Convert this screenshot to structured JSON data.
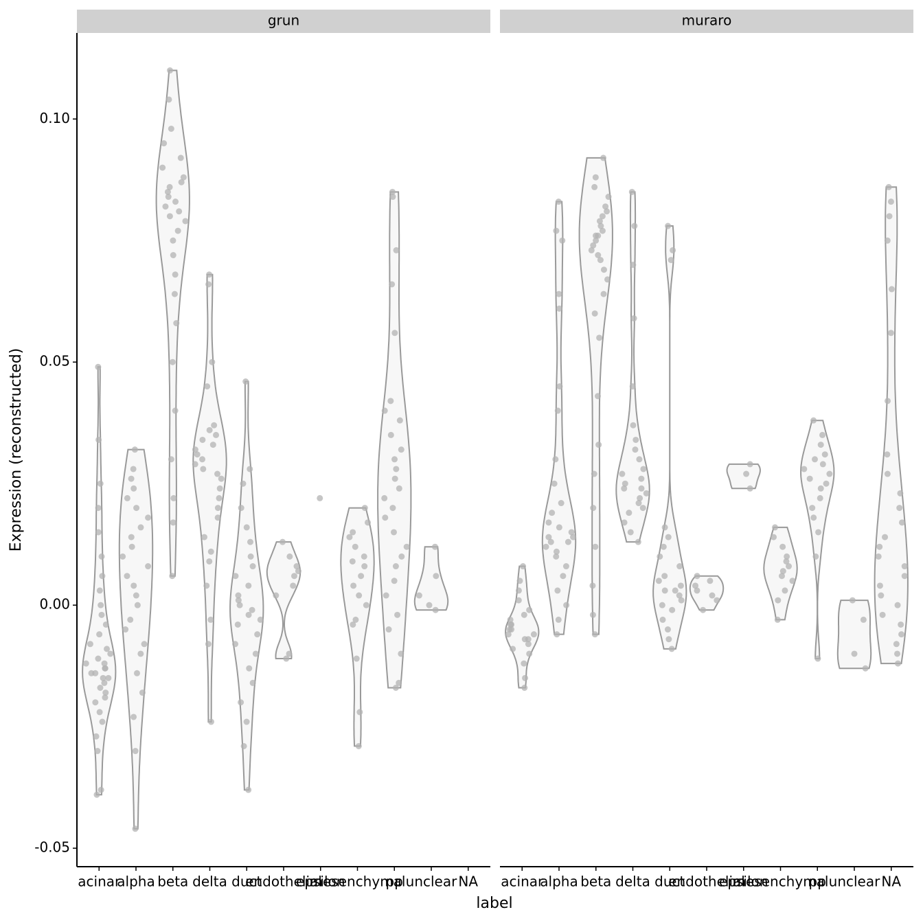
{
  "chart_data": {
    "type": "violin",
    "xlabel": "label",
    "ylabel": "Expression (reconstructed)",
    "ylim": [
      -0.0538,
      0.1177
    ],
    "yticks": [
      {
        "value": -0.05,
        "label": "-0.05"
      },
      {
        "value": 0,
        "label": "0.00"
      },
      {
        "value": 0.05,
        "label": "0.05"
      },
      {
        "value": 0.1,
        "label": "0.10"
      }
    ],
    "point_color": "#b3b3b3",
    "violin_color": "#999999",
    "violin_fill": "#f7f7f7",
    "strip_color": "#d0d0d0",
    "facets": [
      {
        "title": "grun",
        "categories": [
          "acinar",
          "alpha",
          "beta",
          "delta",
          "duct",
          "endothelial",
          "epsilon",
          "mesenchymal",
          "pp",
          "unclear",
          "NA"
        ],
        "groups": [
          [
            -0.039,
            -0.038,
            -0.03,
            -0.027,
            -0.024,
            -0.022,
            -0.02,
            -0.019,
            -0.018,
            -0.017,
            -0.016,
            -0.015,
            -0.015,
            -0.014,
            -0.014,
            -0.013,
            -0.013,
            -0.012,
            -0.012,
            -0.011,
            -0.01,
            -0.009,
            -0.008,
            -0.006,
            -0.004,
            -0.002,
            0.0,
            0.003,
            0.006,
            0.01,
            0.015,
            0.02,
            0.025,
            0.034,
            0.049
          ],
          [
            -0.046,
            -0.03,
            -0.023,
            -0.018,
            -0.014,
            -0.01,
            -0.008,
            -0.005,
            -0.003,
            0.0,
            0.002,
            0.004,
            0.006,
            0.008,
            0.01,
            0.012,
            0.014,
            0.016,
            0.018,
            0.02,
            0.022,
            0.024,
            0.026,
            0.028,
            0.032
          ],
          [
            0.006,
            0.017,
            0.022,
            0.03,
            0.04,
            0.05,
            0.058,
            0.064,
            0.068,
            0.072,
            0.075,
            0.077,
            0.079,
            0.08,
            0.081,
            0.082,
            0.083,
            0.084,
            0.085,
            0.086,
            0.087,
            0.088,
            0.09,
            0.092,
            0.095,
            0.098,
            0.104,
            0.11
          ],
          [
            -0.024,
            -0.008,
            -0.003,
            0.004,
            0.009,
            0.011,
            0.014,
            0.018,
            0.02,
            0.022,
            0.024,
            0.026,
            0.027,
            0.028,
            0.029,
            0.03,
            0.031,
            0.032,
            0.033,
            0.034,
            0.035,
            0.036,
            0.037,
            0.045,
            0.05,
            0.066,
            0.068
          ],
          [
            -0.038,
            -0.029,
            -0.024,
            -0.02,
            -0.016,
            -0.013,
            -0.01,
            -0.008,
            -0.006,
            -0.004,
            -0.003,
            -0.002,
            -0.001,
            0.0,
            0.001,
            0.002,
            0.004,
            0.006,
            0.008,
            0.01,
            0.013,
            0.016,
            0.02,
            0.025,
            0.028,
            0.046
          ],
          [
            -0.011,
            -0.01,
            0.002,
            0.004,
            0.006,
            0.007,
            0.008,
            0.01,
            0.013
          ],
          [
            0.022
          ],
          [
            -0.029,
            -0.022,
            -0.011,
            -0.004,
            -0.003,
            0.0,
            0.002,
            0.004,
            0.006,
            0.008,
            0.009,
            0.01,
            0.012,
            0.014,
            0.015,
            0.017,
            0.02
          ],
          [
            -0.017,
            -0.016,
            -0.01,
            -0.005,
            -0.002,
            0.002,
            0.005,
            0.008,
            0.01,
            0.012,
            0.015,
            0.018,
            0.02,
            0.022,
            0.024,
            0.026,
            0.028,
            0.03,
            0.032,
            0.035,
            0.038,
            0.04,
            0.042,
            0.056,
            0.066,
            0.073,
            0.084,
            0.085
          ],
          [
            -0.001,
            0.0,
            0.002,
            0.006,
            0.012
          ],
          []
        ]
      },
      {
        "title": "muraro",
        "categories": [
          "acinar",
          "alpha",
          "beta",
          "delta",
          "duct",
          "endothelial",
          "epsilon",
          "mesenchymal",
          "pp",
          "unclear",
          "NA"
        ],
        "groups": [
          [
            -0.017,
            -0.015,
            -0.012,
            -0.01,
            -0.009,
            -0.008,
            -0.007,
            -0.007,
            -0.006,
            -0.006,
            -0.005,
            -0.005,
            -0.004,
            -0.004,
            -0.003,
            -0.002,
            -0.001,
            0.001,
            0.003,
            0.005,
            0.008
          ],
          [
            -0.006,
            -0.003,
            0.0,
            0.003,
            0.006,
            0.008,
            0.01,
            0.011,
            0.012,
            0.013,
            0.013,
            0.014,
            0.014,
            0.015,
            0.016,
            0.017,
            0.019,
            0.021,
            0.025,
            0.03,
            0.04,
            0.045,
            0.061,
            0.064,
            0.075,
            0.077,
            0.083
          ],
          [
            -0.006,
            -0.002,
            0.004,
            0.012,
            0.02,
            0.027,
            0.033,
            0.043,
            0.055,
            0.06,
            0.064,
            0.067,
            0.069,
            0.071,
            0.072,
            0.073,
            0.074,
            0.075,
            0.076,
            0.076,
            0.077,
            0.078,
            0.079,
            0.08,
            0.081,
            0.082,
            0.084,
            0.086,
            0.088,
            0.092
          ],
          [
            0.013,
            0.015,
            0.017,
            0.019,
            0.02,
            0.021,
            0.022,
            0.023,
            0.024,
            0.024,
            0.025,
            0.026,
            0.027,
            0.028,
            0.03,
            0.032,
            0.034,
            0.037,
            0.045,
            0.059,
            0.07,
            0.078,
            0.085
          ],
          [
            -0.009,
            -0.007,
            -0.005,
            -0.003,
            -0.001,
            0.0,
            0.001,
            0.002,
            0.003,
            0.003,
            0.004,
            0.005,
            0.006,
            0.008,
            0.01,
            0.012,
            0.014,
            0.016,
            0.071,
            0.073,
            0.078
          ],
          [
            -0.001,
            0.001,
            0.002,
            0.003,
            0.004,
            0.005,
            0.006
          ],
          [
            0.024,
            0.027,
            0.029
          ],
          [
            -0.003,
            0.001,
            0.003,
            0.005,
            0.006,
            0.007,
            0.008,
            0.009,
            0.01,
            0.012,
            0.014,
            0.016
          ],
          [
            -0.011,
            0.01,
            0.015,
            0.018,
            0.02,
            0.022,
            0.024,
            0.025,
            0.026,
            0.027,
            0.028,
            0.029,
            0.03,
            0.031,
            0.033,
            0.035,
            0.038
          ],
          [
            -0.013,
            -0.01,
            -0.003,
            0.001
          ],
          [
            -0.012,
            -0.01,
            -0.008,
            -0.006,
            -0.004,
            -0.002,
            0.0,
            0.002,
            0.004,
            0.006,
            0.008,
            0.01,
            0.012,
            0.014,
            0.017,
            0.02,
            0.023,
            0.027,
            0.031,
            0.042,
            0.056,
            0.065,
            0.075,
            0.08,
            0.083,
            0.086
          ]
        ]
      }
    ]
  }
}
